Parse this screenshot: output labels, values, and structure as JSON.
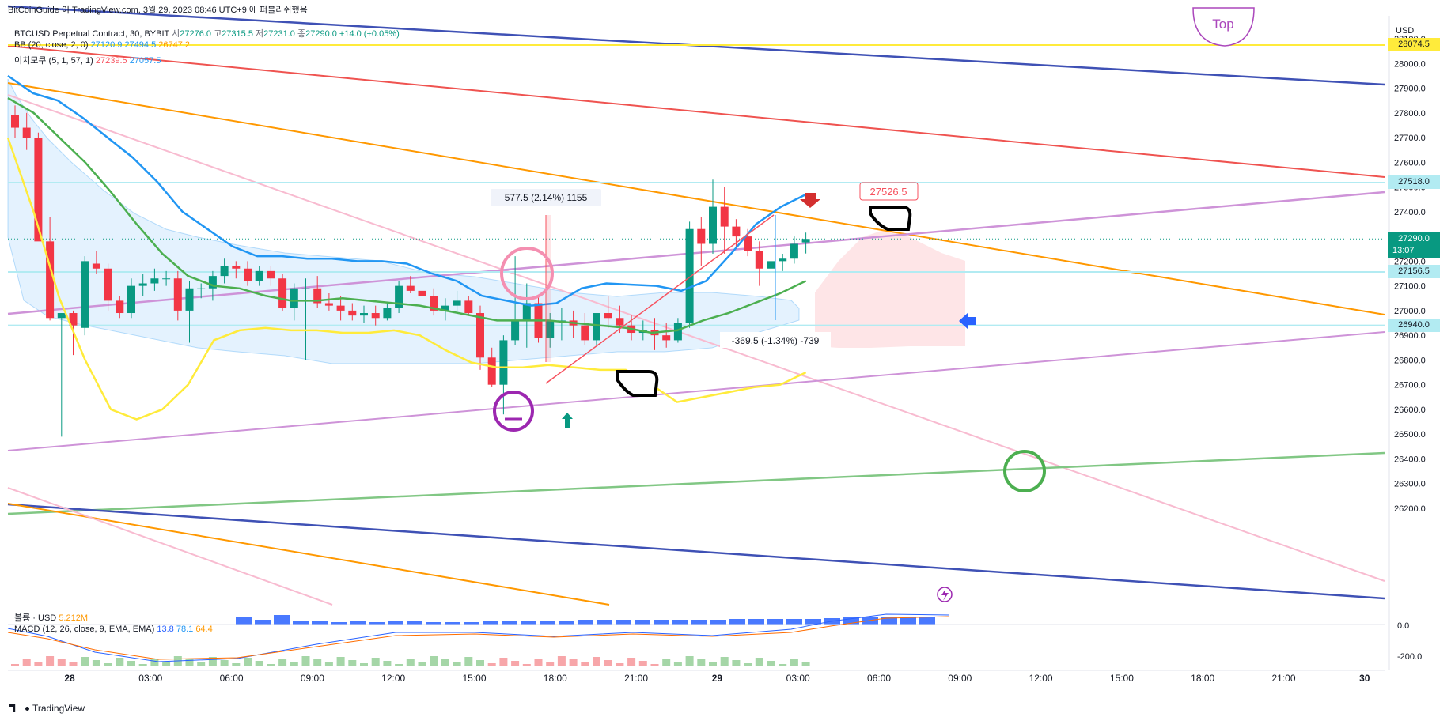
{
  "attribution": "BitCoinGuide 이 TradingView.com, 3월 29, 2023 08:46 UTC+9 에 퍼블리쉬했음",
  "header": {
    "symbol_line": "BTCUSD Perpetual Contract, 30, BYBIT",
    "o_label": "시",
    "o_value": "27276.0",
    "h_label": "고",
    "h_value": "27315.5",
    "l_label": "저",
    "l_value": "27231.0",
    "c_label": "종",
    "c_value": "27290.0",
    "change": "+14.0 (+0.05%)",
    "bb_label": "BB (20, close, 2, 0)",
    "bb_v1": "27120.9",
    "bb_v2": "27494.5",
    "bb_v3": "26747.2",
    "ma_label": "이치모쿠 (5, 1, 57, 1)",
    "ma_v1": "27239.5",
    "ma_v2": "27057.5"
  },
  "volume_label": "볼륨 · USD",
  "volume_value": "5.212M",
  "macd": {
    "label": "MACD (12, 26, close, 9, EMA, EMA)",
    "v1": "13.8",
    "v2": "78.1",
    "v3": "64.4"
  },
  "currency": "USD",
  "price_tags": [
    {
      "value": "28074.5",
      "bg": "#ffeb3b",
      "fg": "#131722"
    },
    {
      "value": "27518.0",
      "bg": "#b2ebf2",
      "fg": "#131722"
    },
    {
      "value": "27290.0",
      "bg": "#089981",
      "fg": "#ffffff",
      "countdown": "13:07"
    },
    {
      "value": "27156.5",
      "bg": "#b2ebf2",
      "fg": "#131722"
    },
    {
      "value": "26940.0",
      "bg": "#b2ebf2",
      "fg": "#131722"
    }
  ],
  "annotations": {
    "measure1": "577.5 (2.14%) 1155",
    "measure2": "-369.5 (-1.34%) -739",
    "price_callout": "27526.5",
    "top_label": "Top"
  },
  "macd_axis": [
    "0.0",
    "-200.0"
  ],
  "branding": "TradingView",
  "chart_data": {
    "type": "candlestick",
    "title": "BTCUSD Perpetual Contract, 30, BYBIT",
    "x_tick_labels": [
      "28",
      "03:00",
      "06:00",
      "09:00",
      "12:00",
      "15:00",
      "18:00",
      "21:00",
      "29",
      "03:00",
      "06:00",
      "09:00",
      "12:00",
      "15:00",
      "18:00",
      "21:00",
      "30"
    ],
    "y_tick_labels": [
      28100,
      28000,
      27900,
      27800,
      27700,
      27600,
      27500,
      27400,
      27300,
      27200,
      27100,
      27000,
      26900,
      26800,
      26700,
      26600,
      26500,
      26400,
      26300,
      26200
    ],
    "ylim": [
      26150,
      28150
    ],
    "candles": [
      [
        27790,
        27830,
        27700,
        27740
      ],
      [
        27740,
        27800,
        27650,
        27700
      ],
      [
        27700,
        27720,
        27300,
        27280
      ],
      [
        27280,
        27380,
        26960,
        26970
      ],
      [
        26970,
        26990,
        26490,
        26990
      ],
      [
        26990,
        27000,
        26820,
        26940
      ],
      [
        26930,
        27220,
        26900,
        27200
      ],
      [
        27190,
        27240,
        27150,
        27170
      ],
      [
        27170,
        27190,
        27000,
        27040
      ],
      [
        27040,
        27060,
        26970,
        26990
      ],
      [
        26990,
        27130,
        26970,
        27100
      ],
      [
        27100,
        27150,
        27060,
        27110
      ],
      [
        27110,
        27170,
        27080,
        27130
      ],
      [
        27130,
        27160,
        27100,
        27130
      ],
      [
        27130,
        27160,
        26960,
        27000
      ],
      [
        27000,
        27120,
        26870,
        27090
      ],
      [
        27090,
        27110,
        27050,
        27090
      ],
      [
        27090,
        27160,
        27040,
        27140
      ],
      [
        27140,
        27210,
        27110,
        27180
      ],
      [
        27180,
        27200,
        27130,
        27170
      ],
      [
        27170,
        27200,
        27100,
        27120
      ],
      [
        27120,
        27180,
        27100,
        27160
      ],
      [
        27160,
        27180,
        27100,
        27130
      ],
      [
        27130,
        27150,
        27000,
        27010
      ],
      [
        27010,
        27110,
        26960,
        27090
      ],
      [
        27090,
        27130,
        26800,
        27090
      ],
      [
        27090,
        27140,
        27010,
        27030
      ],
      [
        27030,
        27070,
        27000,
        27020
      ],
      [
        27020,
        27060,
        26960,
        27000
      ],
      [
        27000,
        27030,
        26960,
        26980
      ],
      [
        26980,
        27020,
        26950,
        26990
      ],
      [
        26990,
        27020,
        26940,
        26970
      ],
      [
        26970,
        27030,
        26960,
        27010
      ],
      [
        27010,
        27120,
        26990,
        27100
      ],
      [
        27100,
        27140,
        27070,
        27080
      ],
      [
        27080,
        27120,
        27040,
        27060
      ],
      [
        27060,
        27090,
        26980,
        27000
      ],
      [
        27000,
        27050,
        26960,
        27020
      ],
      [
        27020,
        27080,
        26990,
        27040
      ],
      [
        27040,
        27060,
        26980,
        26990
      ],
      [
        26990,
        27020,
        26760,
        26810
      ],
      [
        26810,
        26850,
        26690,
        26700
      ],
      [
        26700,
        26900,
        26580,
        26880
      ],
      [
        26880,
        27220,
        26860,
        26960
      ],
      [
        26960,
        27110,
        26850,
        27030
      ],
      [
        27030,
        27060,
        26870,
        26890
      ],
      [
        26890,
        26990,
        26850,
        26960
      ],
      [
        26960,
        27010,
        26880,
        26960
      ],
      [
        26960,
        27000,
        26890,
        26940
      ],
      [
        26940,
        26990,
        26860,
        26880
      ],
      [
        26880,
        26990,
        26860,
        26990
      ],
      [
        26990,
        27060,
        26930,
        26970
      ],
      [
        26970,
        27020,
        26910,
        26940
      ],
      [
        26940,
        26980,
        26880,
        26910
      ],
      [
        26910,
        26960,
        26880,
        26920
      ],
      [
        26920,
        26970,
        26840,
        26900
      ],
      [
        26900,
        26950,
        26850,
        26880
      ],
      [
        26880,
        26970,
        26870,
        26950
      ],
      [
        26950,
        27360,
        26930,
        27330
      ],
      [
        27330,
        27380,
        27180,
        27270
      ],
      [
        27270,
        27530,
        27230,
        27420
      ],
      [
        27420,
        27500,
        27230,
        27340
      ],
      [
        27340,
        27370,
        27250,
        27300
      ],
      [
        27300,
        27330,
        27220,
        27240
      ],
      [
        27240,
        27280,
        27100,
        27170
      ],
      [
        27170,
        27230,
        27140,
        27200
      ],
      [
        27200,
        27230,
        27160,
        27210
      ],
      [
        27210,
        27300,
        27190,
        27270
      ],
      [
        27276,
        27315.5,
        27231,
        27290
      ]
    ],
    "series": [
      {
        "name": "BB basis",
        "color": "#2196f3",
        "values": [
          27950,
          27880,
          27850,
          27780,
          27700,
          27620,
          27520,
          27400,
          27330,
          27260,
          27220,
          27220,
          27210,
          27210,
          27200,
          27200,
          27190,
          27150,
          27120,
          27060,
          27040,
          27020,
          27030,
          27090,
          27110,
          27105,
          27100,
          27080,
          27120,
          27230,
          27350,
          27420,
          27470
        ]
      },
      {
        "name": "Ichimoku 1",
        "color": "#4caf50",
        "values": [
          27860,
          27800,
          27700,
          27600,
          27480,
          27350,
          27230,
          27140,
          27100,
          27090,
          27060,
          27040,
          27040,
          27050,
          27040,
          27030,
          27020,
          27000,
          26980,
          26960,
          26960,
          26960,
          26950,
          26940,
          26930,
          26910,
          26920,
          26960,
          26990,
          27030,
          27070,
          27120
        ]
      },
      {
        "name": "BB lower",
        "color": "#ffeb3b",
        "values": [
          27700,
          27400,
          27050,
          26800,
          26600,
          26560,
          26600,
          26700,
          26880,
          26920,
          26930,
          26920,
          26920,
          26910,
          26910,
          26920,
          26900,
          26840,
          26790,
          26770,
          26770,
          26780,
          26770,
          26760,
          26760,
          26700,
          26630,
          26650,
          26670,
          26690,
          26700,
          26750
        ]
      }
    ],
    "volume": [
      9,
      6,
      12,
      4,
      5,
      3,
      4,
      3,
      4,
      4,
      3,
      3,
      3,
      4,
      4,
      5,
      5,
      5,
      6,
      6,
      6,
      6,
      6,
      6,
      6,
      6,
      7,
      7,
      7,
      7,
      7,
      8,
      9,
      10,
      10,
      9,
      9
    ],
    "macd_axis_ticks": [
      "0.0",
      "-200.0"
    ]
  }
}
